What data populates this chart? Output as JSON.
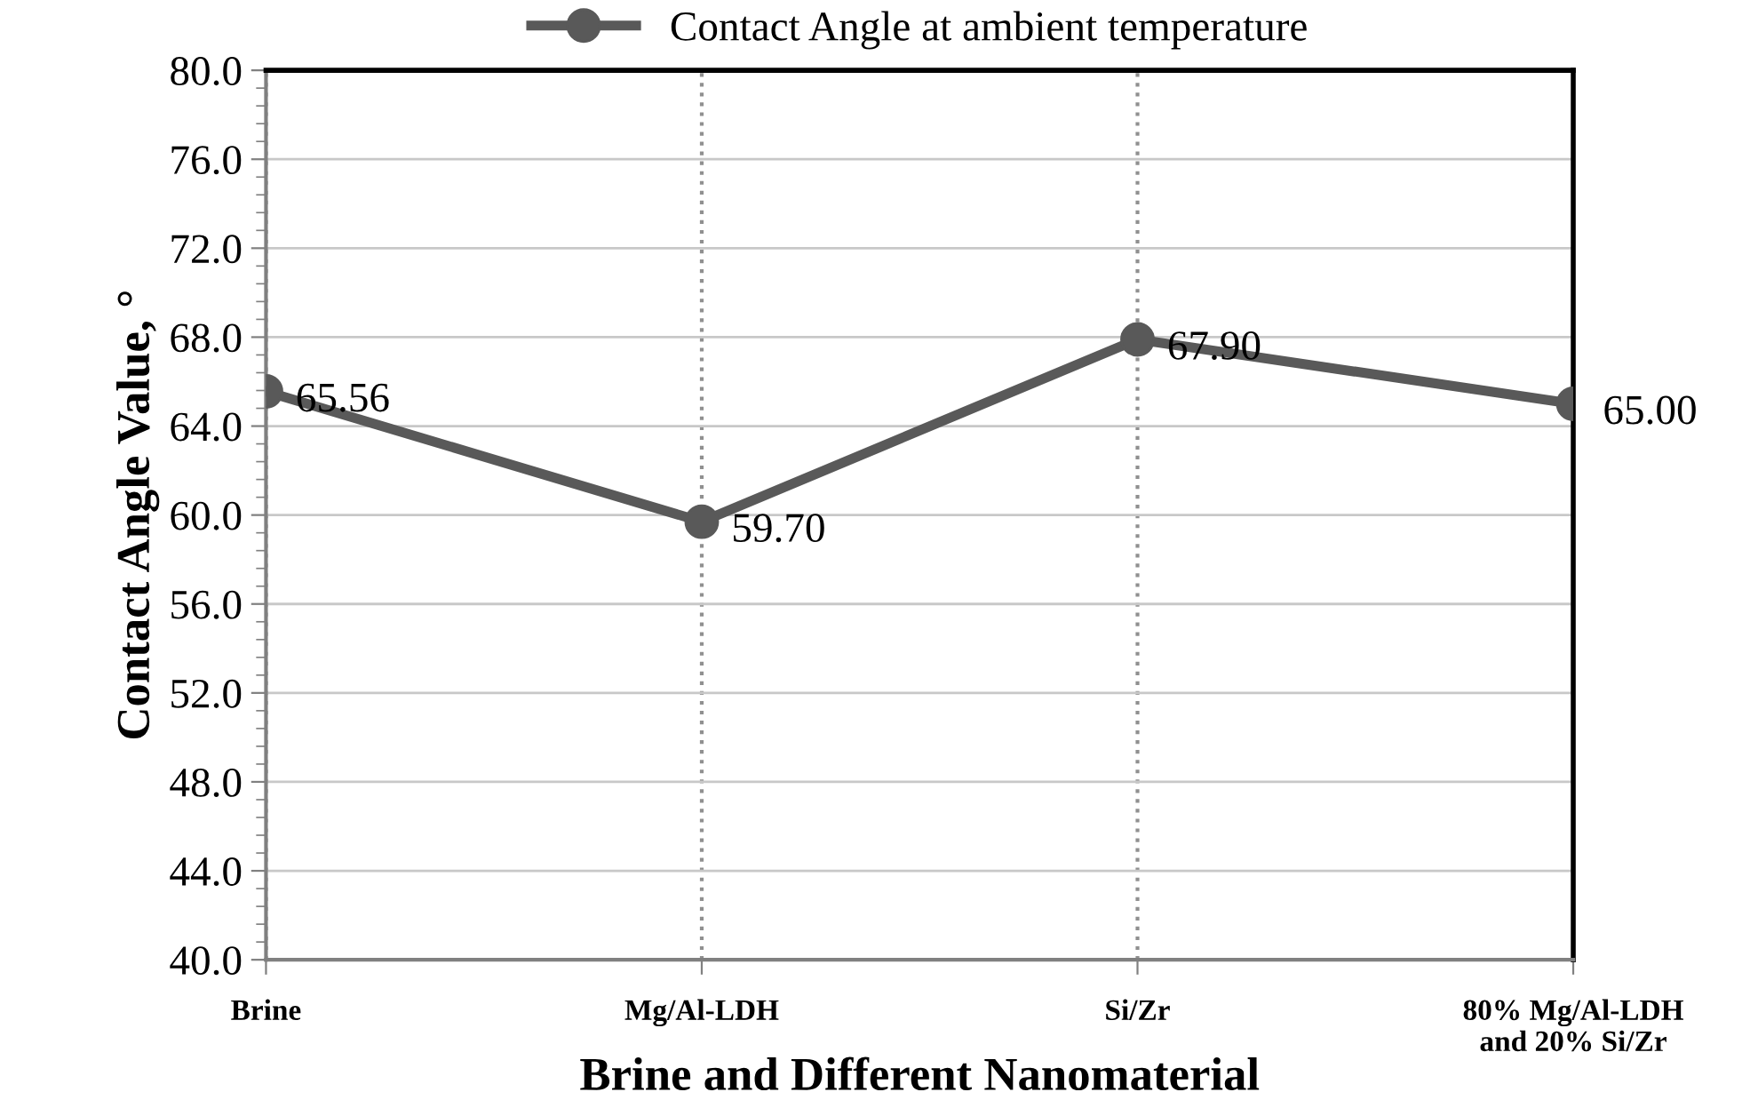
{
  "chart_data": {
    "type": "line",
    "xlabel": "Brine and Different Nanomaterial",
    "ylabel": "Contact Angle Value, °",
    "categories": [
      "Brine",
      "Mg/Al-LDH",
      "Si/Zr",
      "80% Mg/Al-LDH\nand 20% Si/Zr"
    ],
    "series": [
      {
        "name": "Contact Angle at ambient temperature",
        "color": "#595959",
        "values": [
          65.56,
          59.7,
          67.9,
          65.0
        ],
        "value_labels": [
          "65.56",
          "59.70",
          "67.90",
          "65.00"
        ]
      }
    ],
    "ylim": [
      40,
      80
    ],
    "yticks": [
      {
        "value": 40,
        "label": "40.0"
      },
      {
        "value": 44,
        "label": "44.0"
      },
      {
        "value": 48,
        "label": "48.0"
      },
      {
        "value": 52,
        "label": "52.0"
      },
      {
        "value": 56,
        "label": "56.0"
      },
      {
        "value": 60,
        "label": "60.0"
      },
      {
        "value": 64,
        "label": "64.0"
      },
      {
        "value": 68,
        "label": "68.0"
      },
      {
        "value": 72,
        "label": "72.0"
      },
      {
        "value": 76,
        "label": "76.0"
      },
      {
        "value": 80,
        "label": "80.0"
      }
    ],
    "grid": true,
    "legend": "top",
    "marker": "circle",
    "line_style": "solid"
  }
}
